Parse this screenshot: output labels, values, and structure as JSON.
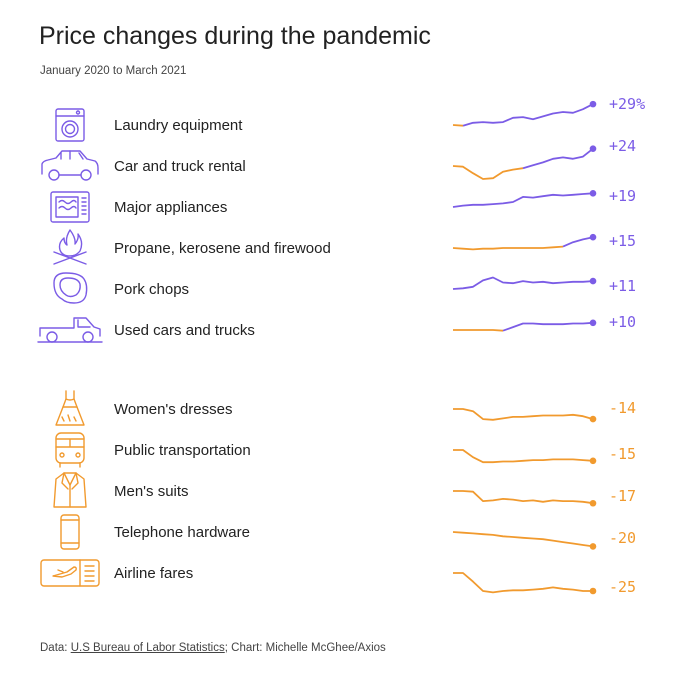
{
  "header": {
    "title": "Price changes during the pandemic",
    "subtitle": "January 2020 to March 2021"
  },
  "source": {
    "prefix": "Data: ",
    "link_text": "U.S Bureau of Labor Statistics",
    "suffix": "; Chart: Michelle McGhee/Axios"
  },
  "colors": {
    "increase": "#7b5ce6",
    "decrease": "#f19a2e",
    "text": "#222222"
  },
  "chart_data": {
    "type": "line",
    "title": "Price changes during the pandemic",
    "subtitle": "January 2020 to March 2021",
    "x": [
      "2020-01",
      "2020-02",
      "2020-03",
      "2020-04",
      "2020-05",
      "2020-06",
      "2020-07",
      "2020-08",
      "2020-09",
      "2020-10",
      "2020-11",
      "2020-12",
      "2021-01",
      "2021-02",
      "2021-03"
    ],
    "series": [
      {
        "name": "Laundry equipment",
        "icon": "washing-machine-icon",
        "direction": "up",
        "final_label": "+29%",
        "final_value": 29,
        "values": [
          0,
          -1,
          3,
          4,
          3,
          4,
          10,
          11,
          8,
          12,
          16,
          18,
          17,
          22,
          29
        ],
        "color_split_index": 1
      },
      {
        "name": "Car and truck rental",
        "icon": "car-icon",
        "direction": "up",
        "final_label": "+24",
        "final_value": 24,
        "values": [
          0,
          -1,
          -10,
          -18,
          -17,
          -8,
          -5,
          -3,
          1,
          5,
          10,
          12,
          10,
          13,
          24
        ],
        "color_split_index": 7
      },
      {
        "name": "Major appliances",
        "icon": "microwave-icon",
        "direction": "up",
        "final_label": "+19",
        "final_value": 19,
        "values": [
          0,
          2,
          3,
          3,
          4,
          5,
          7,
          14,
          13,
          15,
          17,
          16,
          17,
          18,
          19
        ],
        "color_split_index": 0
      },
      {
        "name": "Propane, kerosene and firewood",
        "icon": "campfire-icon",
        "direction": "up",
        "final_label": "+15",
        "final_value": 15,
        "values": [
          0,
          -1,
          -2,
          -1,
          -1,
          0,
          0,
          0,
          0,
          0,
          1,
          2,
          8,
          12,
          15
        ],
        "color_split_index": 11
      },
      {
        "name": "Pork chops",
        "icon": "pork-chop-icon",
        "direction": "up",
        "final_label": "+11",
        "final_value": 11,
        "values": [
          0,
          1,
          3,
          12,
          16,
          9,
          8,
          11,
          9,
          10,
          8,
          9,
          10,
          10,
          11
        ],
        "color_split_index": 0
      },
      {
        "name": "Used cars and trucks",
        "icon": "pickup-truck-icon",
        "direction": "up",
        "final_label": "+10",
        "final_value": 10,
        "values": [
          0,
          0,
          0,
          0,
          0,
          -1,
          4,
          9,
          9,
          8,
          8,
          8,
          9,
          9,
          10
        ],
        "color_split_index": 5
      },
      {
        "name": "Women's dresses",
        "icon": "dress-icon",
        "direction": "down",
        "final_label": "-14",
        "final_value": -14,
        "values": [
          0,
          0,
          -3,
          -14,
          -15,
          -13,
          -11,
          -11,
          -10,
          -9,
          -9,
          -9,
          -8,
          -10,
          -14
        ],
        "color_split_index": 0
      },
      {
        "name": "Public transportation",
        "icon": "bus-icon",
        "direction": "down",
        "final_label": "-15",
        "final_value": -15,
        "values": [
          0,
          0,
          -10,
          -17,
          -17,
          -16,
          -16,
          -15,
          -14,
          -14,
          -13,
          -13,
          -13,
          -14,
          -15
        ],
        "color_split_index": 0
      },
      {
        "name": "Men's suits",
        "icon": "suit-icon",
        "direction": "down",
        "final_label": "-17",
        "final_value": -17,
        "values": [
          0,
          0,
          -1,
          -14,
          -13,
          -11,
          -12,
          -14,
          -13,
          -15,
          -13,
          -14,
          -14,
          -15,
          -17
        ],
        "color_split_index": 0
      },
      {
        "name": "Telephone hardware",
        "icon": "phone-icon",
        "direction": "down",
        "final_label": "-20",
        "final_value": -20,
        "values": [
          0,
          -1,
          -2,
          -3,
          -4,
          -6,
          -7,
          -8,
          -9,
          -10,
          -12,
          -14,
          -16,
          -18,
          -20
        ],
        "color_split_index": 0
      },
      {
        "name": "Airline fares",
        "icon": "airline-ticket-icon",
        "direction": "down",
        "final_label": "-25",
        "final_value": -25,
        "values": [
          0,
          0,
          -12,
          -25,
          -27,
          -25,
          -24,
          -24,
          -23,
          -22,
          -20,
          -22,
          -23,
          -25,
          -25
        ],
        "color_split_index": 0
      }
    ]
  }
}
